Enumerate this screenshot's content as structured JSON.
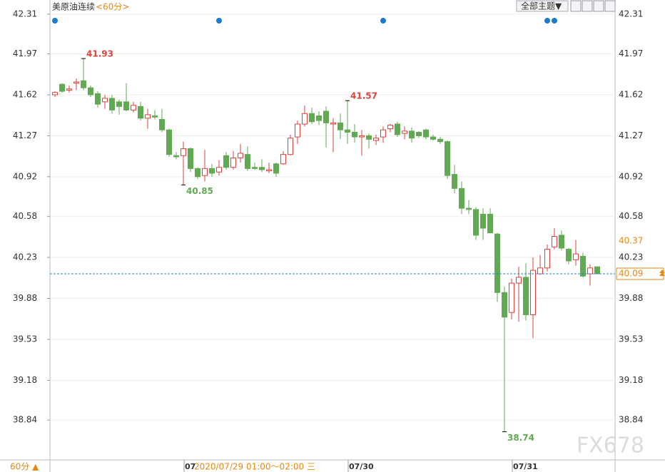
{
  "chart_data": {
    "type": "candlestick",
    "title": "美原油连续",
    "period": "<60分>",
    "theme_button": "全部主题▼",
    "period_button": "60分 ▲",
    "crosshair_label": "2020/07/29 01:00～02:00 三",
    "watermark": "FX678",
    "up_color": "#e0413a",
    "down_color": "#62a953",
    "ylim": [
      38.53,
      42.4
    ],
    "yticks": [
      42.31,
      41.97,
      41.62,
      41.27,
      40.92,
      40.58,
      40.23,
      39.88,
      39.53,
      39.18,
      38.84
    ],
    "grid": true,
    "price_marker": 40.37,
    "categories": [
      null,
      null,
      null,
      null,
      null,
      null,
      null,
      null,
      null,
      null,
      null,
      null,
      null,
      null,
      null,
      null,
      null,
      null,
      "07",
      null,
      null,
      null,
      null,
      null,
      null,
      null,
      null,
      null,
      null,
      null,
      null,
      null,
      null,
      null,
      null,
      null,
      null,
      null,
      null,
      null,
      null,
      "07/30",
      null,
      null,
      null,
      null,
      null,
      null,
      null,
      null,
      null,
      null,
      null,
      null,
      null,
      null,
      null,
      null,
      null,
      null,
      null,
      null,
      null,
      null,
      "07/31",
      null,
      null,
      null,
      null,
      null,
      null,
      null,
      null,
      null,
      null,
      null,
      null
    ],
    "open": [
      41.62,
      41.71,
      41.66,
      41.72,
      41.74,
      41.68,
      41.63,
      41.56,
      41.59,
      41.56,
      41.56,
      41.49,
      41.52,
      41.42,
      41.44,
      41.41,
      41.32,
      41.1,
      41.1,
      41.16,
      40.99,
      40.93,
      40.99,
      40.96,
      41.1,
      41.0,
      41.08,
      41.11,
      41.0,
      41.0,
      40.97,
      41.03,
      41.03,
      41.11,
      41.26,
      41.37,
      41.46,
      41.44,
      41.48,
      41.37,
      41.38,
      41.32,
      41.3,
      41.26,
      41.27,
      41.23,
      41.26,
      41.33,
      41.37,
      41.29,
      41.31,
      41.3,
      41.32,
      41.26,
      41.24,
      41.22,
      40.94,
      40.82,
      40.65,
      40.64,
      40.6,
      40.6,
      40.43,
      39.93,
      39.76,
      40.01,
      40.06,
      39.74,
      40.09,
      40.14,
      40.32,
      40.42,
      40.3,
      40.21,
      40.24,
      40.09,
      40.15
    ],
    "high": [
      41.65,
      41.72,
      41.7,
      41.76,
      41.93,
      41.7,
      41.65,
      41.62,
      41.62,
      41.58,
      41.72,
      41.56,
      41.56,
      41.5,
      41.49,
      41.5,
      41.33,
      41.13,
      41.22,
      41.17,
      41.0,
      41.15,
      41.03,
      41.06,
      41.13,
      41.14,
      41.2,
      41.18,
      41.04,
      41.07,
      41.04,
      41.04,
      41.14,
      41.28,
      41.4,
      41.53,
      41.51,
      41.48,
      41.52,
      41.42,
      41.46,
      41.57,
      41.37,
      41.32,
      41.29,
      41.28,
      41.35,
      41.37,
      41.39,
      41.35,
      41.34,
      41.31,
      41.33,
      41.28,
      41.26,
      41.23,
      41.02,
      40.88,
      40.72,
      40.66,
      40.65,
      40.65,
      40.44,
      39.98,
      40.05,
      40.15,
      40.18,
      40.23,
      40.25,
      40.34,
      40.48,
      40.46,
      40.31,
      40.38,
      40.27,
      40.17,
      40.15
    ],
    "low": [
      41.6,
      41.64,
      41.64,
      41.66,
      41.66,
      41.6,
      41.51,
      41.5,
      41.46,
      41.45,
      41.48,
      41.47,
      41.4,
      41.33,
      41.41,
      41.3,
      41.09,
      41.07,
      40.85,
      40.96,
      40.9,
      40.88,
      40.92,
      40.93,
      40.98,
      40.98,
      41.04,
      40.97,
      40.98,
      40.96,
      40.95,
      40.92,
      41.02,
      41.1,
      41.2,
      41.35,
      41.37,
      41.36,
      41.17,
      41.13,
      41.24,
      41.2,
      41.21,
      41.1,
      41.16,
      41.19,
      41.21,
      41.3,
      41.26,
      41.24,
      41.21,
      41.25,
      41.24,
      41.23,
      41.2,
      40.9,
      40.78,
      40.6,
      40.6,
      40.38,
      40.38,
      40.44,
      39.85,
      38.74,
      39.7,
      39.68,
      39.69,
      39.54,
      40.08,
      40.11,
      40.3,
      40.29,
      40.17,
      40.16,
      40.06,
      39.99,
      40.09
    ],
    "close": [
      41.64,
      41.65,
      41.67,
      41.73,
      41.68,
      41.62,
      41.54,
      41.59,
      41.49,
      41.52,
      41.49,
      41.53,
      41.42,
      41.45,
      41.43,
      41.32,
      41.11,
      41.09,
      41.16,
      40.99,
      40.92,
      40.99,
      40.95,
      41.0,
      41.0,
      41.08,
      41.12,
      40.99,
      40.99,
      40.98,
      40.98,
      40.95,
      41.11,
      41.25,
      41.37,
      41.46,
      41.39,
      41.4,
      41.38,
      41.38,
      41.32,
      41.3,
      41.26,
      41.27,
      41.24,
      41.25,
      41.32,
      41.36,
      41.28,
      41.31,
      41.25,
      41.27,
      41.26,
      41.24,
      41.22,
      40.93,
      40.82,
      40.65,
      40.64,
      40.42,
      40.48,
      40.44,
      39.93,
      39.72,
      40.01,
      40.06,
      39.74,
      40.12,
      40.14,
      40.3,
      40.41,
      40.31,
      40.2,
      40.26,
      40.07,
      40.14,
      40.09
    ]
  }
}
